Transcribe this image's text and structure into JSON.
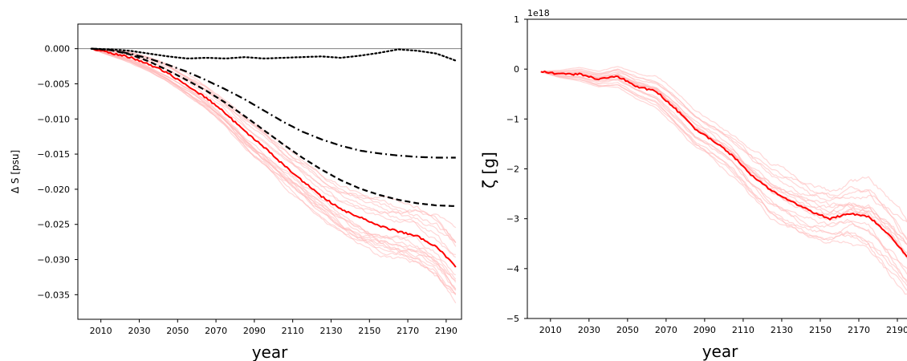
{
  "chart_data": [
    {
      "type": "line",
      "xlabel": "year",
      "ylabel": "Δ S [psu]",
      "xlim": [
        1998,
        2198
      ],
      "ylim": [
        -0.0385,
        0.0035
      ],
      "xticks": [
        2010,
        2030,
        2050,
        2070,
        2090,
        2110,
        2130,
        2150,
        2170,
        2190
      ],
      "xtick_labels": [
        "2010",
        "2030",
        "2050",
        "2070",
        "2090",
        "2110",
        "2130",
        "2150",
        "2170",
        "2190"
      ],
      "yticks": [
        0.0,
        -0.005,
        -0.01,
        -0.015,
        -0.02,
        -0.025,
        -0.03,
        -0.035
      ],
      "ytick_labels": [
        "0.000",
        "−0.005",
        "−0.010",
        "−0.015",
        "−0.020",
        "−0.025",
        "−0.030",
        "−0.035"
      ],
      "reference_line_y": 0,
      "grid": false,
      "series": [
        {
          "style": "solid",
          "color": "#ff0000",
          "x": [
            2005,
            2015,
            2025,
            2035,
            2045,
            2055,
            2065,
            2075,
            2085,
            2095,
            2105,
            2115,
            2125,
            2135,
            2145,
            2155,
            2165,
            2175,
            2185,
            2195
          ],
          "y": [
            0.0,
            -0.0006,
            -0.0012,
            -0.0022,
            -0.0035,
            -0.0052,
            -0.007,
            -0.0092,
            -0.0118,
            -0.014,
            -0.0165,
            -0.0188,
            -0.021,
            -0.0228,
            -0.024,
            -0.0252,
            -0.026,
            -0.0267,
            -0.0282,
            -0.031
          ]
        },
        {
          "style": "dashed",
          "color": "#000000",
          "x": [
            2005,
            2015,
            2025,
            2035,
            2045,
            2055,
            2065,
            2075,
            2085,
            2095,
            2105,
            2115,
            2125,
            2135,
            2145,
            2155,
            2165,
            2175,
            2185,
            2195
          ],
          "y": [
            0.0,
            -0.0002,
            -0.0008,
            -0.0018,
            -0.0031,
            -0.0045,
            -0.006,
            -0.0077,
            -0.0096,
            -0.0116,
            -0.0136,
            -0.0155,
            -0.0172,
            -0.0187,
            -0.0199,
            -0.0208,
            -0.0215,
            -0.022,
            -0.0223,
            -0.0224
          ]
        },
        {
          "style": "dashdot",
          "color": "#000000",
          "x": [
            2005,
            2015,
            2025,
            2035,
            2045,
            2055,
            2065,
            2075,
            2085,
            2095,
            2105,
            2115,
            2125,
            2135,
            2145,
            2155,
            2165,
            2175,
            2185,
            2195
          ],
          "y": [
            0.0,
            -0.0002,
            -0.0007,
            -0.0014,
            -0.0023,
            -0.0033,
            -0.0045,
            -0.0058,
            -0.0072,
            -0.0088,
            -0.0104,
            -0.0118,
            -0.0129,
            -0.0138,
            -0.0145,
            -0.0149,
            -0.0152,
            -0.0154,
            -0.0155,
            -0.0155
          ]
        },
        {
          "style": "dotted",
          "color": "#000000",
          "x": [
            2005,
            2015,
            2025,
            2035,
            2045,
            2055,
            2065,
            2075,
            2085,
            2095,
            2105,
            2115,
            2125,
            2135,
            2145,
            2155,
            2165,
            2175,
            2185,
            2195
          ],
          "y": [
            0.0,
            -0.0001,
            -0.0003,
            -0.0007,
            -0.0011,
            -0.0014,
            -0.0013,
            -0.0014,
            -0.0012,
            -0.0014,
            -0.0013,
            -0.0012,
            -0.0011,
            -0.0013,
            -0.001,
            -0.0006,
            -0.0001,
            -0.0003,
            -0.0007,
            -0.0017
          ]
        }
      ],
      "ensemble_count": 18,
      "ensemble_color": "#ffb6b6",
      "ensemble_spread_end": 0.0045
    },
    {
      "type": "line",
      "xlabel": "year",
      "ylabel": "ζ [g]",
      "offset_text": "1e18",
      "xlim": [
        1998,
        2195
      ],
      "ylim": [
        -5,
        1
      ],
      "xticks": [
        2010,
        2030,
        2050,
        2070,
        2090,
        2110,
        2130,
        2150,
        2170,
        2190
      ],
      "xtick_labels": [
        "2010",
        "2030",
        "2050",
        "2070",
        "2090",
        "2110",
        "2130",
        "2150",
        "2170",
        "2190"
      ],
      "yticks": [
        1,
        0,
        -1,
        -2,
        -3,
        -4,
        -5
      ],
      "ytick_labels": [
        "1",
        "0",
        "−1",
        "−2",
        "−3",
        "−4",
        "−5"
      ],
      "grid": false,
      "series": [
        {
          "style": "solid",
          "color": "#ff0000",
          "x": [
            2005,
            2015,
            2025,
            2035,
            2045,
            2055,
            2065,
            2075,
            2085,
            2095,
            2105,
            2115,
            2125,
            2135,
            2145,
            2155,
            2165,
            2175,
            2185,
            2195
          ],
          "y": [
            -0.05,
            -0.1,
            -0.1,
            -0.2,
            -0.15,
            -0.35,
            -0.45,
            -0.8,
            -1.2,
            -1.45,
            -1.75,
            -2.15,
            -2.45,
            -2.65,
            -2.85,
            -3.0,
            -2.9,
            -2.95,
            -3.3,
            -3.75
          ]
        }
      ],
      "ensemble_count": 18,
      "ensemble_color": "#ffb6b6",
      "ensemble_spread_end": 0.75
    }
  ]
}
